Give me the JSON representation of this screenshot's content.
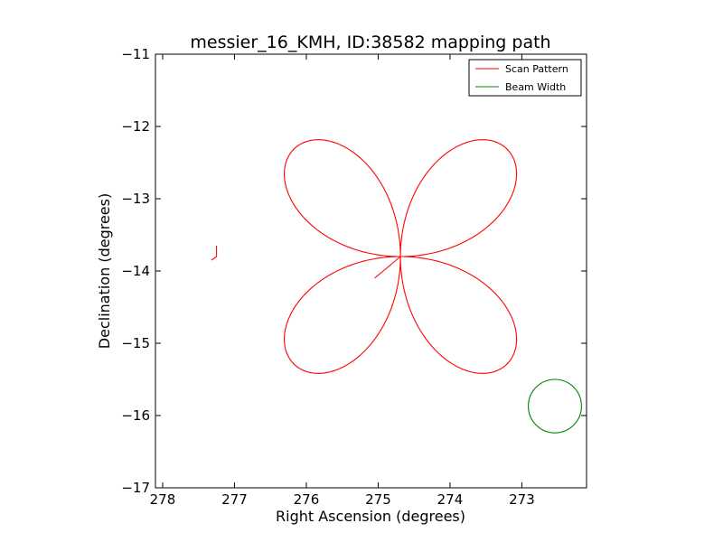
{
  "chart_data": {
    "type": "line",
    "title": "messier_16_KMH, ID:38582 mapping path",
    "xlabel": "Right Ascension (degrees)",
    "ylabel": "Declination (degrees)",
    "xlim": [
      278.1,
      272.1
    ],
    "ylim": [
      -17,
      -11
    ],
    "x_inverted": true,
    "xticks": [
      278,
      277,
      276,
      275,
      274,
      273
    ],
    "xtick_labels": [
      "278",
      "277",
      "276",
      "275",
      "274",
      "273"
    ],
    "yticks": [
      -17,
      -16,
      -15,
      -14,
      -13,
      -12,
      -11
    ],
    "ytick_labels": [
      "−17",
      "−16",
      "−15",
      "−14",
      "−13",
      "−12",
      "−11"
    ],
    "grid": false,
    "legend_position": "top-right",
    "series": [
      {
        "name": "Scan Pattern",
        "color": "#ff0000",
        "style": "daisy",
        "center": [
          274.69,
          -13.8
        ],
        "petal_reach_deg": 2.1,
        "start": [
          275.05,
          -14.1
        ],
        "end_tail": [
          [
            277.25,
            -13.8
          ],
          [
            277.32,
            -13.8
          ]
        ]
      },
      {
        "name": "Beam Width",
        "color": "#008000",
        "style": "circle",
        "center": [
          272.54,
          -15.87
        ],
        "radius_deg": 0.37
      }
    ]
  }
}
